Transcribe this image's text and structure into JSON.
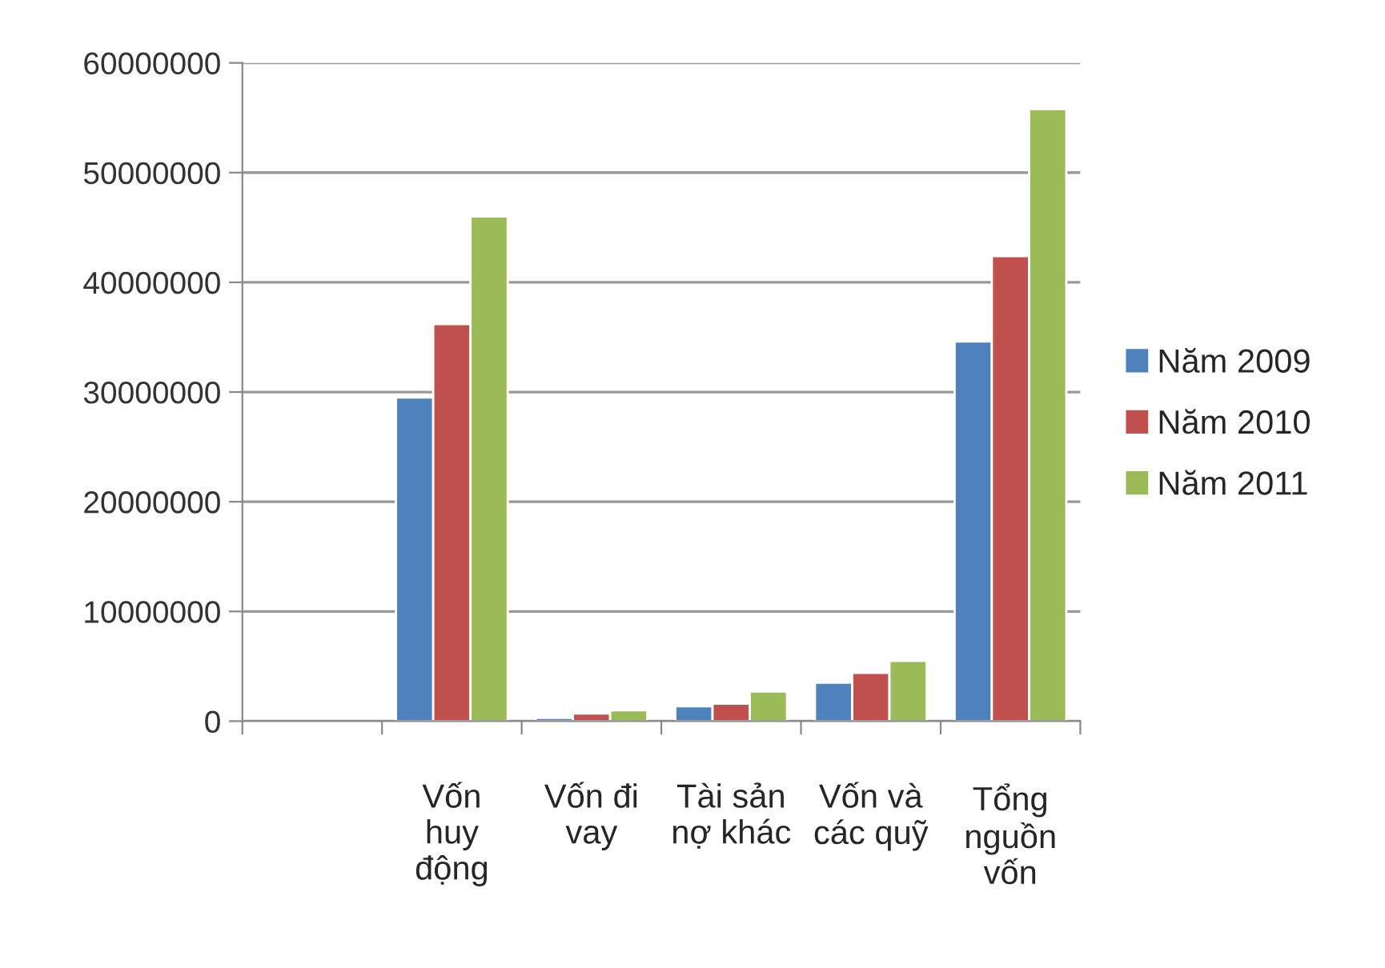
{
  "chart_data": {
    "type": "bar",
    "categories": [
      null,
      "Vốn\nhuy\nđộng",
      "Vốn đi\nvay",
      "Tài sản\nnợ khác",
      "Vốn và\ncác quỹ",
      "Tổng\nnguồn\nvốn"
    ],
    "series": [
      {
        "name": "Năm 2009",
        "color": "#4f81bd",
        "values": [
          null,
          29500000,
          300000,
          1350000,
          3500000,
          34600000
        ]
      },
      {
        "name": "Năm 2010",
        "color": "#c0504d",
        "values": [
          null,
          36200000,
          700000,
          1600000,
          4400000,
          42400000
        ]
      },
      {
        "name": "Năm 2011",
        "color": "#9bbb59",
        "values": [
          null,
          46000000,
          1000000,
          2700000,
          5500000,
          55800000
        ]
      }
    ],
    "ylim": [
      0,
      60000000
    ],
    "yticks": [
      0,
      10000000,
      20000000,
      30000000,
      40000000,
      50000000,
      60000000
    ],
    "grid": "y",
    "legend": "right"
  }
}
